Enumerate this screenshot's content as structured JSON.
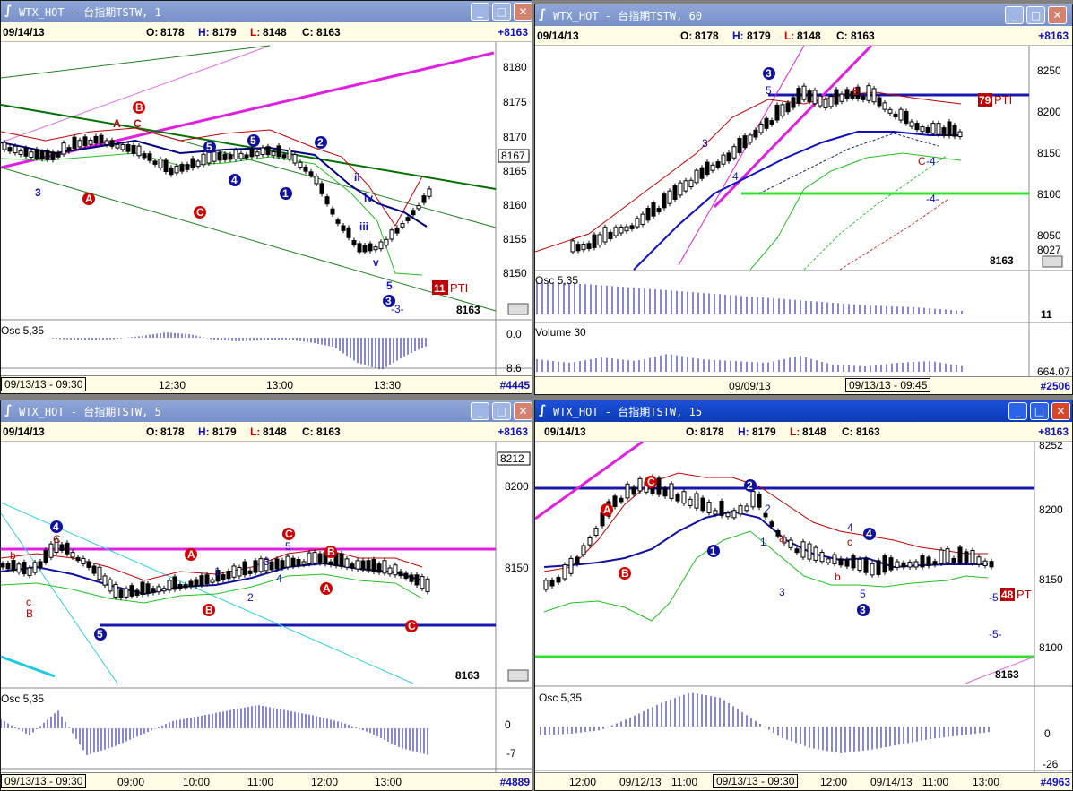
{
  "windows": [
    {
      "id": "w1",
      "title": "WTX_HOT - 台指期TSTW, 1",
      "date": "09/14/13",
      "open_label": "O:",
      "open": "8178",
      "high_label": "H:",
      "high": "8179",
      "low_label": "L:",
      "low": "8148",
      "close_label": "C:",
      "close": "8163",
      "change": "+8163",
      "price_ticks": [
        "8180",
        "8175",
        "8170",
        "8167",
        "8165",
        "8160",
        "8155",
        "8150"
      ],
      "last_price": "8163",
      "pti_badge": "11",
      "pti_label": "PTI",
      "osc_label": "Osc 5,35",
      "osc_ticks": [
        "0.0",
        "8.6"
      ],
      "time_axis": [
        "09/13/13 - 09:30",
        "12:30",
        "13:00",
        "13:30"
      ],
      "bar_count": "#4445",
      "wave_labels": [
        "A",
        "B",
        "C",
        "3",
        "5",
        "2",
        "4",
        "1",
        "i",
        "ii",
        "iii",
        "iv",
        "v",
        "-3-"
      ]
    },
    {
      "id": "w60",
      "title": "WTX_HOT - 台指期TSTW, 60",
      "date": "09/14/13",
      "open_label": "O:",
      "open": "8178",
      "high_label": "H:",
      "high": "8179",
      "low_label": "L:",
      "low": "8148",
      "close_label": "C:",
      "close": "8163",
      "change": "+8163",
      "price_ticks": [
        "8250",
        "8200",
        "8150",
        "8100",
        "8050",
        "8027"
      ],
      "last_price": "8163",
      "pti_badge": "79",
      "pti_label": "PTI",
      "osc_label": "Osc 5,35",
      "osc_value": "11",
      "volume_label": "Volume 30",
      "volume_value": "664.07",
      "time_axis": [
        "09/09/13",
        "09/13/13 - 09:45"
      ],
      "bar_count": "#2506",
      "wave_labels": [
        "3",
        "5",
        "B",
        "3",
        "4",
        "C",
        "-4",
        "-4-"
      ]
    },
    {
      "id": "w5",
      "title": "WTX_HOT - 台指期TSTW, 5",
      "date": "09/14/13",
      "open_label": "O:",
      "open": "8178",
      "high_label": "H:",
      "high": "8179",
      "low_label": "L:",
      "low": "8148",
      "close_label": "C:",
      "close": "8163",
      "change": "+8163",
      "price_ticks": [
        "8212",
        "8200",
        "8150"
      ],
      "last_price": "8163",
      "osc_label": "Osc 5,35",
      "osc_ticks": [
        "0",
        "-7"
      ],
      "time_axis": [
        "09/13/13 - 09:30",
        "09:00",
        "10:00",
        "11:00",
        "12:00",
        "13:00"
      ],
      "bar_count": "#4889",
      "wave_labels": [
        "4",
        "C",
        "b",
        "c",
        "B",
        "5",
        "A",
        "B",
        "C",
        "1",
        "2",
        "3",
        "4",
        "5"
      ]
    },
    {
      "id": "w15",
      "title": "WTX_HOT - 台指期TSTW, 15",
      "date": "09/14/13",
      "open_label": "O:",
      "open": "8178",
      "high_label": "H:",
      "high": "8179",
      "low_label": "L:",
      "low": "8148",
      "close_label": "C:",
      "close": "8163",
      "change": "+8163",
      "price_ticks": [
        "8252",
        "8200",
        "8150",
        "8100"
      ],
      "last_price": "8163",
      "pti_badge": "48",
      "pti_label": "PT",
      "osc_label": "Osc 5,35",
      "osc_ticks": [
        "0",
        "-26"
      ],
      "time_axis": [
        "12:00",
        "09/12/13",
        "11:00",
        "09/13/13 - 09:30",
        "12:00",
        "09/14/13",
        "11:00",
        "13:00"
      ],
      "bar_count": "#4963",
      "wave_labels": [
        "A",
        "B",
        "C",
        "1",
        "2",
        "2",
        "a",
        "3",
        "4",
        "c",
        "b",
        "5",
        "3",
        "-5",
        "-5-"
      ]
    }
  ],
  "colors": {
    "title_active": "#0a3cb8",
    "title_inactive": "#7890c8",
    "info_bg": "#fffde6",
    "blue_label": "#1010c0",
    "red_label": "#c00000",
    "magenta_line": "#e020e0",
    "green_line": "#20c020",
    "navy_line": "#000080",
    "red_band": "#c00000"
  },
  "icons": [
    "chart-window-icon",
    "minimize-icon",
    "maximize-icon",
    "close-icon"
  ]
}
